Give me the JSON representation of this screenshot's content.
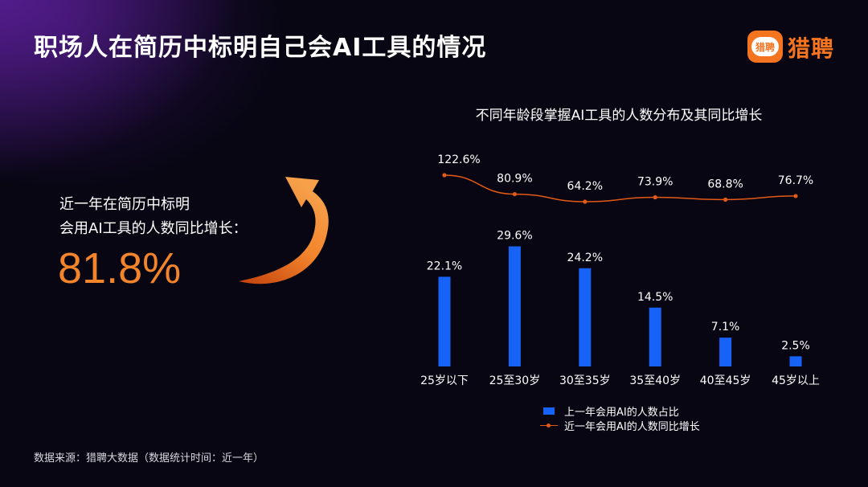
{
  "header": {
    "title": "职场人在简历中标明自己会AI工具的情况",
    "logo_badge": "猎聘",
    "logo_text": "猎聘"
  },
  "highlight": {
    "label_line1": "近一年在简历中标明",
    "label_line2": "会用AI工具的人数同比增长：",
    "value": "81.8%"
  },
  "colors": {
    "accent": "#f2842c",
    "bar": "#1763f7",
    "line": "#e35a17"
  },
  "chart_data": {
    "type": "bar",
    "title": "不同年龄段掌握AI工具的人数分布及其同比增长",
    "categories": [
      "25岁以下",
      "25至30岁",
      "30至35岁",
      "35至40岁",
      "40至45岁",
      "45岁以上"
    ],
    "series": [
      {
        "name": "上一年会用AI的人数占比",
        "type": "bar",
        "values": [
          22.1,
          29.6,
          24.2,
          14.5,
          7.1,
          2.5
        ],
        "labels": [
          "22.1%",
          "29.6%",
          "24.2%",
          "14.5%",
          "7.1%",
          "2.5%"
        ]
      },
      {
        "name": "近一年会用AI的人数同比增长",
        "type": "line",
        "values": [
          122.6,
          80.9,
          64.2,
          73.9,
          68.8,
          76.7
        ],
        "labels": [
          "122.6%",
          "80.9%",
          "64.2%",
          "73.9%",
          "68.8%",
          "76.7%"
        ]
      }
    ],
    "grid": false,
    "legend_position": "bottom"
  },
  "footer": {
    "source": "数据来源：猎聘大数据（数据统计时间：近一年）"
  }
}
